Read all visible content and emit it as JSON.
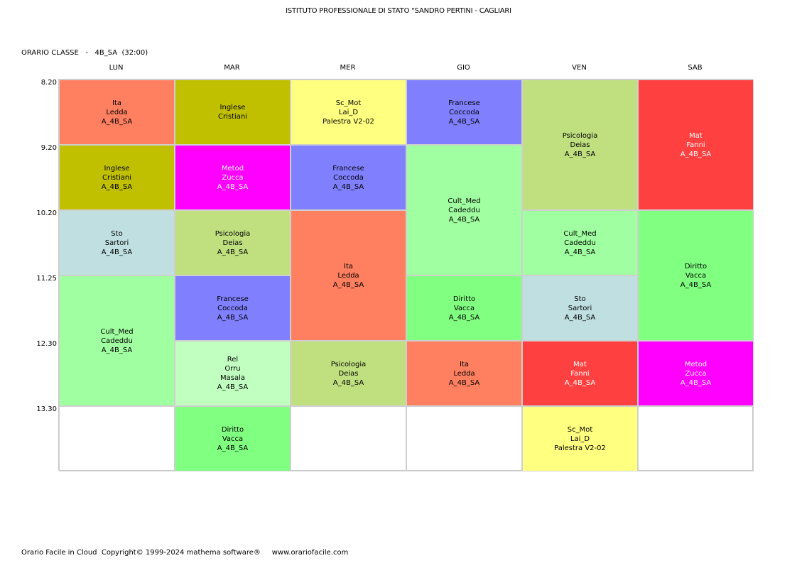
{
  "header": {
    "school": "ISTITUTO PROFESSIONALE DI STATO \"SANDRO PERTINI - CAGLIARI",
    "class_label": "ORARIO CLASSE   -   4B_SA  (32:00)"
  },
  "days": [
    "LUN",
    "MAR",
    "MER",
    "GIO",
    "VEN",
    "SAB"
  ],
  "times": [
    "8.20",
    "9.20",
    "10.20",
    "11.25",
    "12.30",
    "13.30"
  ],
  "colors": {
    "ita": "#ff8060",
    "inglese": "#c0c000",
    "sto": "#c0dfe0",
    "cult_med": "#a0ffa0",
    "metod": "#ff00ff",
    "psicologia": "#c0e080",
    "francese": "#8080ff",
    "rel": "#c0ffc0",
    "diritto": "#80ff80",
    "sc_mot": "#ffff80",
    "mat": "#ff4040"
  },
  "lessons": [
    {
      "day": 0,
      "slot": 0,
      "span": 1,
      "lines": [
        "Ita",
        "Ledda",
        "A_4B_SA"
      ],
      "color": "#ff8060",
      "text_color": "#000000"
    },
    {
      "day": 0,
      "slot": 1,
      "span": 1,
      "lines": [
        "Inglese",
        "Cristiani",
        "A_4B_SA"
      ],
      "color": "#c0c000",
      "text_color": "#000000"
    },
    {
      "day": 0,
      "slot": 2,
      "span": 1,
      "lines": [
        "Sto",
        "Sartori",
        "A_4B_SA"
      ],
      "color": "#c0dfe0",
      "text_color": "#000000"
    },
    {
      "day": 0,
      "slot": 3,
      "span": 2,
      "lines": [
        "Cult_Med",
        "Cadeddu",
        "A_4B_SA"
      ],
      "color": "#a0ffa0",
      "text_color": "#000000"
    },
    {
      "day": 1,
      "slot": 0,
      "span": 1,
      "lines": [
        "Inglese",
        "Cristiani"
      ],
      "color": "#c0c000",
      "text_color": "#000000"
    },
    {
      "day": 1,
      "slot": 1,
      "span": 1,
      "lines": [
        "Metod",
        "Zucca",
        "A_4B_SA"
      ],
      "color": "#ff00ff",
      "text_color": "#ffffff"
    },
    {
      "day": 1,
      "slot": 2,
      "span": 1,
      "lines": [
        "Psicologia",
        "Deias",
        "A_4B_SA"
      ],
      "color": "#c0e080",
      "text_color": "#000000"
    },
    {
      "day": 1,
      "slot": 3,
      "span": 1,
      "lines": [
        "Francese",
        "Coccoda",
        "A_4B_SA"
      ],
      "color": "#8080ff",
      "text_color": "#000000"
    },
    {
      "day": 1,
      "slot": 4,
      "span": 1,
      "lines": [
        "Rel",
        "Orru",
        "Masala",
        "A_4B_SA"
      ],
      "color": "#c0ffc0",
      "text_color": "#000000"
    },
    {
      "day": 1,
      "slot": 5,
      "span": 1,
      "lines": [
        "Diritto",
        "Vacca",
        "A_4B_SA"
      ],
      "color": "#80ff80",
      "text_color": "#000000"
    },
    {
      "day": 2,
      "slot": 0,
      "span": 1,
      "lines": [
        "Sc_Mot",
        "Lai_D",
        "Palestra V2-02"
      ],
      "color": "#ffff80",
      "text_color": "#000000"
    },
    {
      "day": 2,
      "slot": 1,
      "span": 1,
      "lines": [
        "Francese",
        "Coccoda",
        "A_4B_SA"
      ],
      "color": "#8080ff",
      "text_color": "#000000"
    },
    {
      "day": 2,
      "slot": 2,
      "span": 2,
      "lines": [
        "Ita",
        "Ledda",
        "A_4B_SA"
      ],
      "color": "#ff8060",
      "text_color": "#000000"
    },
    {
      "day": 2,
      "slot": 4,
      "span": 1,
      "lines": [
        "Psicologia",
        "Deias",
        "A_4B_SA"
      ],
      "color": "#c0e080",
      "text_color": "#000000"
    },
    {
      "day": 3,
      "slot": 0,
      "span": 1,
      "lines": [
        "Francese",
        "Coccoda",
        "A_4B_SA"
      ],
      "color": "#8080ff",
      "text_color": "#000000"
    },
    {
      "day": 3,
      "slot": 1,
      "span": 2,
      "lines": [
        "Cult_Med",
        "Cadeddu",
        "A_4B_SA"
      ],
      "color": "#a0ffa0",
      "text_color": "#000000"
    },
    {
      "day": 3,
      "slot": 3,
      "span": 1,
      "lines": [
        "Diritto",
        "Vacca",
        "A_4B_SA"
      ],
      "color": "#80ff80",
      "text_color": "#000000"
    },
    {
      "day": 3,
      "slot": 4,
      "span": 1,
      "lines": [
        "Ita",
        "Ledda",
        "A_4B_SA"
      ],
      "color": "#ff8060",
      "text_color": "#000000"
    },
    {
      "day": 4,
      "slot": 0,
      "span": 2,
      "lines": [
        "Psicologia",
        "Deias",
        "A_4B_SA"
      ],
      "color": "#c0e080",
      "text_color": "#000000"
    },
    {
      "day": 4,
      "slot": 2,
      "span": 1,
      "lines": [
        "Cult_Med",
        "Cadeddu",
        "A_4B_SA"
      ],
      "color": "#a0ffa0",
      "text_color": "#000000"
    },
    {
      "day": 4,
      "slot": 3,
      "span": 1,
      "lines": [
        "Sto",
        "Sartori",
        "A_4B_SA"
      ],
      "color": "#c0dfe0",
      "text_color": "#000000"
    },
    {
      "day": 4,
      "slot": 4,
      "span": 1,
      "lines": [
        "Mat",
        "Fanni",
        "A_4B_SA"
      ],
      "color": "#ff4040",
      "text_color": "#ffffff"
    },
    {
      "day": 4,
      "slot": 5,
      "span": 1,
      "lines": [
        "Sc_Mot",
        "Lai_D",
        "Palestra V2-02"
      ],
      "color": "#ffff80",
      "text_color": "#000000"
    },
    {
      "day": 5,
      "slot": 0,
      "span": 2,
      "lines": [
        "Mat",
        "Fanni",
        "A_4B_SA"
      ],
      "color": "#ff4040",
      "text_color": "#ffffff"
    },
    {
      "day": 5,
      "slot": 2,
      "span": 2,
      "lines": [
        "Diritto",
        "Vacca",
        "A_4B_SA"
      ],
      "color": "#80ff80",
      "text_color": "#000000"
    },
    {
      "day": 5,
      "slot": 4,
      "span": 1,
      "lines": [
        "Metod",
        "Zucca",
        "A_4B_SA"
      ],
      "color": "#ff00ff",
      "text_color": "#ffffff"
    }
  ],
  "footer": {
    "text": "Orario Facile in Cloud  Copyright© 1999-2024 mathema software®     www.orariofacile.com"
  }
}
